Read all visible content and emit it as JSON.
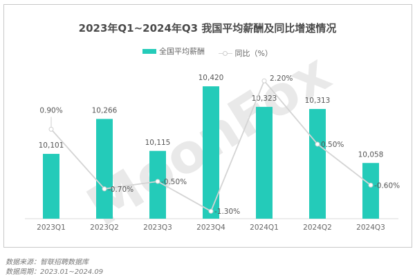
{
  "chart_data": {
    "type": "bar",
    "title": "2023年Q1~2024年Q3 我国平均薪酬及同比增速情况",
    "categories": [
      "2023Q1",
      "2023Q2",
      "2023Q3",
      "2023Q4",
      "2024Q1",
      "2024Q2",
      "2024Q3"
    ],
    "series": [
      {
        "name": "全国平均薪酬",
        "type": "bar",
        "values": [
          10101,
          10266,
          10115,
          10420,
          10323,
          10313,
          10058
        ],
        "labels": [
          "10,101",
          "10,266",
          "10,115",
          "10,420",
          "10,323",
          "10,313",
          "10,058"
        ],
        "color": "#24cbb9"
      },
      {
        "name": "同比（%）",
        "type": "line",
        "values": [
          0.9,
          -0.7,
          -0.5,
          -1.3,
          2.2,
          0.5,
          -0.6
        ],
        "labels": [
          "0.90%",
          "-0.70%",
          "-0.50%",
          "-1.30%",
          "2.20%",
          "0.50%",
          "-0.60%"
        ],
        "color": "#d4d4d4"
      }
    ],
    "legend_position": "top",
    "grid": false
  },
  "watermark": "MoonFox",
  "footer": {
    "source": "数据来源：智联招聘数据库",
    "period": "数据周期：2023.01~2024.09"
  }
}
